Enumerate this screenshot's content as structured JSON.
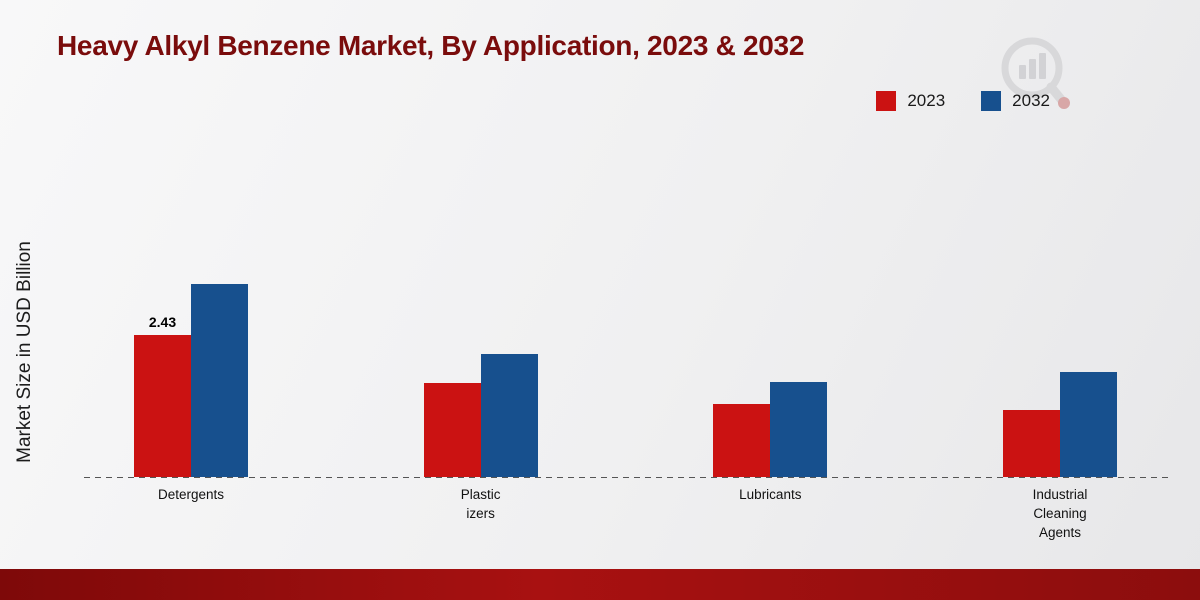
{
  "header": {
    "title": "Heavy Alkyl Benzene Market, By Application, 2023 & 2032",
    "logo_icon": "magnifier-bar-chart-logo"
  },
  "chart_data": {
    "type": "bar",
    "title": "Heavy Alkyl Benzene Market, By Application, 2023 & 2032",
    "xlabel": "",
    "ylabel": "Market Size in USD Billion",
    "categories": [
      "Detergents",
      "Plasticizers",
      "Lubricants",
      "Industrial Cleaning Agents"
    ],
    "category_display_lines": [
      [
        "Detergents"
      ],
      [
        "Plastic",
        "izers"
      ],
      [
        "Lubricants"
      ],
      [
        "Industrial",
        "Cleaning",
        "Agents"
      ]
    ],
    "series": [
      {
        "name": "2023",
        "color": "#cb1212",
        "values": [
          2.43,
          1.6,
          1.25,
          1.15
        ]
      },
      {
        "name": "2032",
        "color": "#17508e",
        "values": [
          3.3,
          2.1,
          1.62,
          1.8
        ]
      }
    ],
    "data_labels": [
      {
        "series": "2023",
        "category": "Detergents",
        "text": "2.43"
      }
    ],
    "ylim": [
      0,
      3.5
    ],
    "grid": false,
    "legend_position": "top-right",
    "baseline_style": "dashed"
  },
  "colors": {
    "title": "#7a0c0c",
    "footer_stripe": "#8c0d0d",
    "legend_text": "#1a1a1a",
    "axis_dash": "#555555",
    "background": "#efeff0"
  }
}
